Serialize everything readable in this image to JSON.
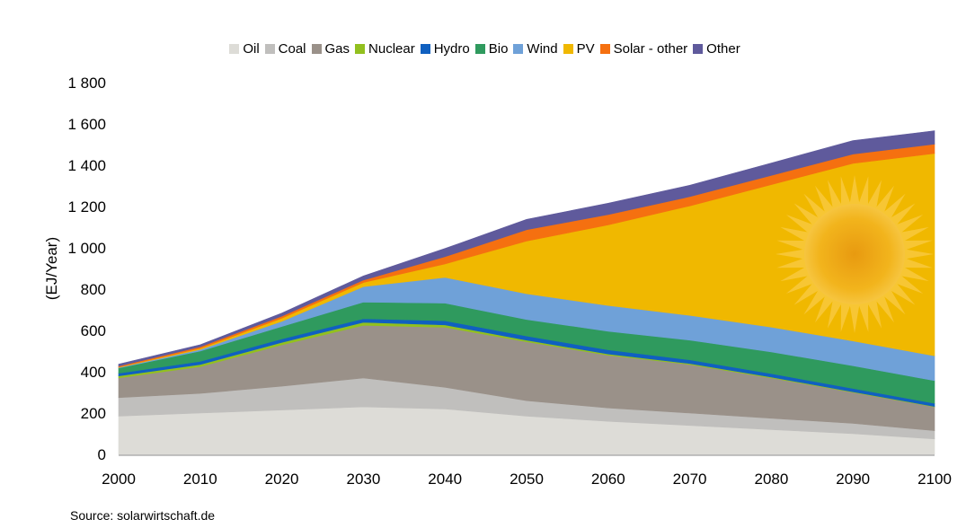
{
  "chart_data": {
    "type": "area",
    "stacked": true,
    "ylabel": "(EJ/Year)",
    "xlabel": "",
    "ylim": [
      0,
      1800
    ],
    "xlim": [
      2000,
      2100
    ],
    "yticks": [
      0,
      200,
      400,
      600,
      800,
      1000,
      1200,
      1400,
      1600,
      1800
    ],
    "ytick_labels": [
      "0",
      "200",
      "400",
      "600",
      "800",
      "1 000",
      "1 200",
      "1 400",
      "1 600",
      "1 800"
    ],
    "xticks": [
      2000,
      2010,
      2020,
      2030,
      2040,
      2050,
      2060,
      2070,
      2080,
      2090,
      2100
    ],
    "xtick_labels": [
      "2000",
      "2010",
      "2020",
      "2030",
      "2040",
      "2050",
      "2060",
      "2070",
      "2080",
      "2090",
      "2100"
    ],
    "legend_position": "top",
    "grid": false,
    "x": [
      2000,
      2010,
      2020,
      2030,
      2040,
      2050,
      2060,
      2070,
      2080,
      2090,
      2100
    ],
    "series": [
      {
        "name": "Oil",
        "color": "#dddcd7",
        "values": [
          185,
          200,
          215,
          230,
          220,
          185,
          160,
          140,
          120,
          100,
          75
        ]
      },
      {
        "name": "Coal",
        "color": "#c0bfbd",
        "values": [
          90,
          95,
          115,
          140,
          105,
          75,
          65,
          60,
          55,
          50,
          40
        ]
      },
      {
        "name": "Gas",
        "color": "#9a9189",
        "values": [
          95,
          130,
          200,
          255,
          290,
          285,
          255,
          235,
          195,
          150,
          115
        ]
      },
      {
        "name": "Nuclear",
        "color": "#92c01f",
        "values": [
          10,
          10,
          12,
          14,
          12,
          8,
          6,
          5,
          4,
          3,
          2
        ]
      },
      {
        "name": "Hydro",
        "color": "#1060c0",
        "values": [
          13,
          15,
          17,
          18,
          20,
          20,
          20,
          18,
          17,
          16,
          15
        ]
      },
      {
        "name": "Bio",
        "color": "#2f9a5e",
        "values": [
          25,
          50,
          60,
          80,
          85,
          80,
          90,
          95,
          105,
          110,
          110
        ]
      },
      {
        "name": "Wind",
        "color": "#6fa1d8",
        "values": [
          3,
          8,
          25,
          75,
          125,
          125,
          125,
          120,
          120,
          120,
          120
        ]
      },
      {
        "name": "PV",
        "color": "#f0b800",
        "values": [
          1,
          5,
          15,
          20,
          65,
          255,
          390,
          530,
          690,
          860,
          980
        ]
      },
      {
        "name": "Solar - other",
        "color": "#f57010",
        "values": [
          5,
          8,
          10,
          12,
          35,
          55,
          50,
          45,
          45,
          45,
          45
        ]
      },
      {
        "name": "Other",
        "color": "#5f5a9c",
        "values": [
          10,
          10,
          15,
          20,
          40,
          50,
          55,
          55,
          60,
          65,
          65
        ]
      }
    ]
  },
  "source": "Source: solarwirtschaft.de"
}
